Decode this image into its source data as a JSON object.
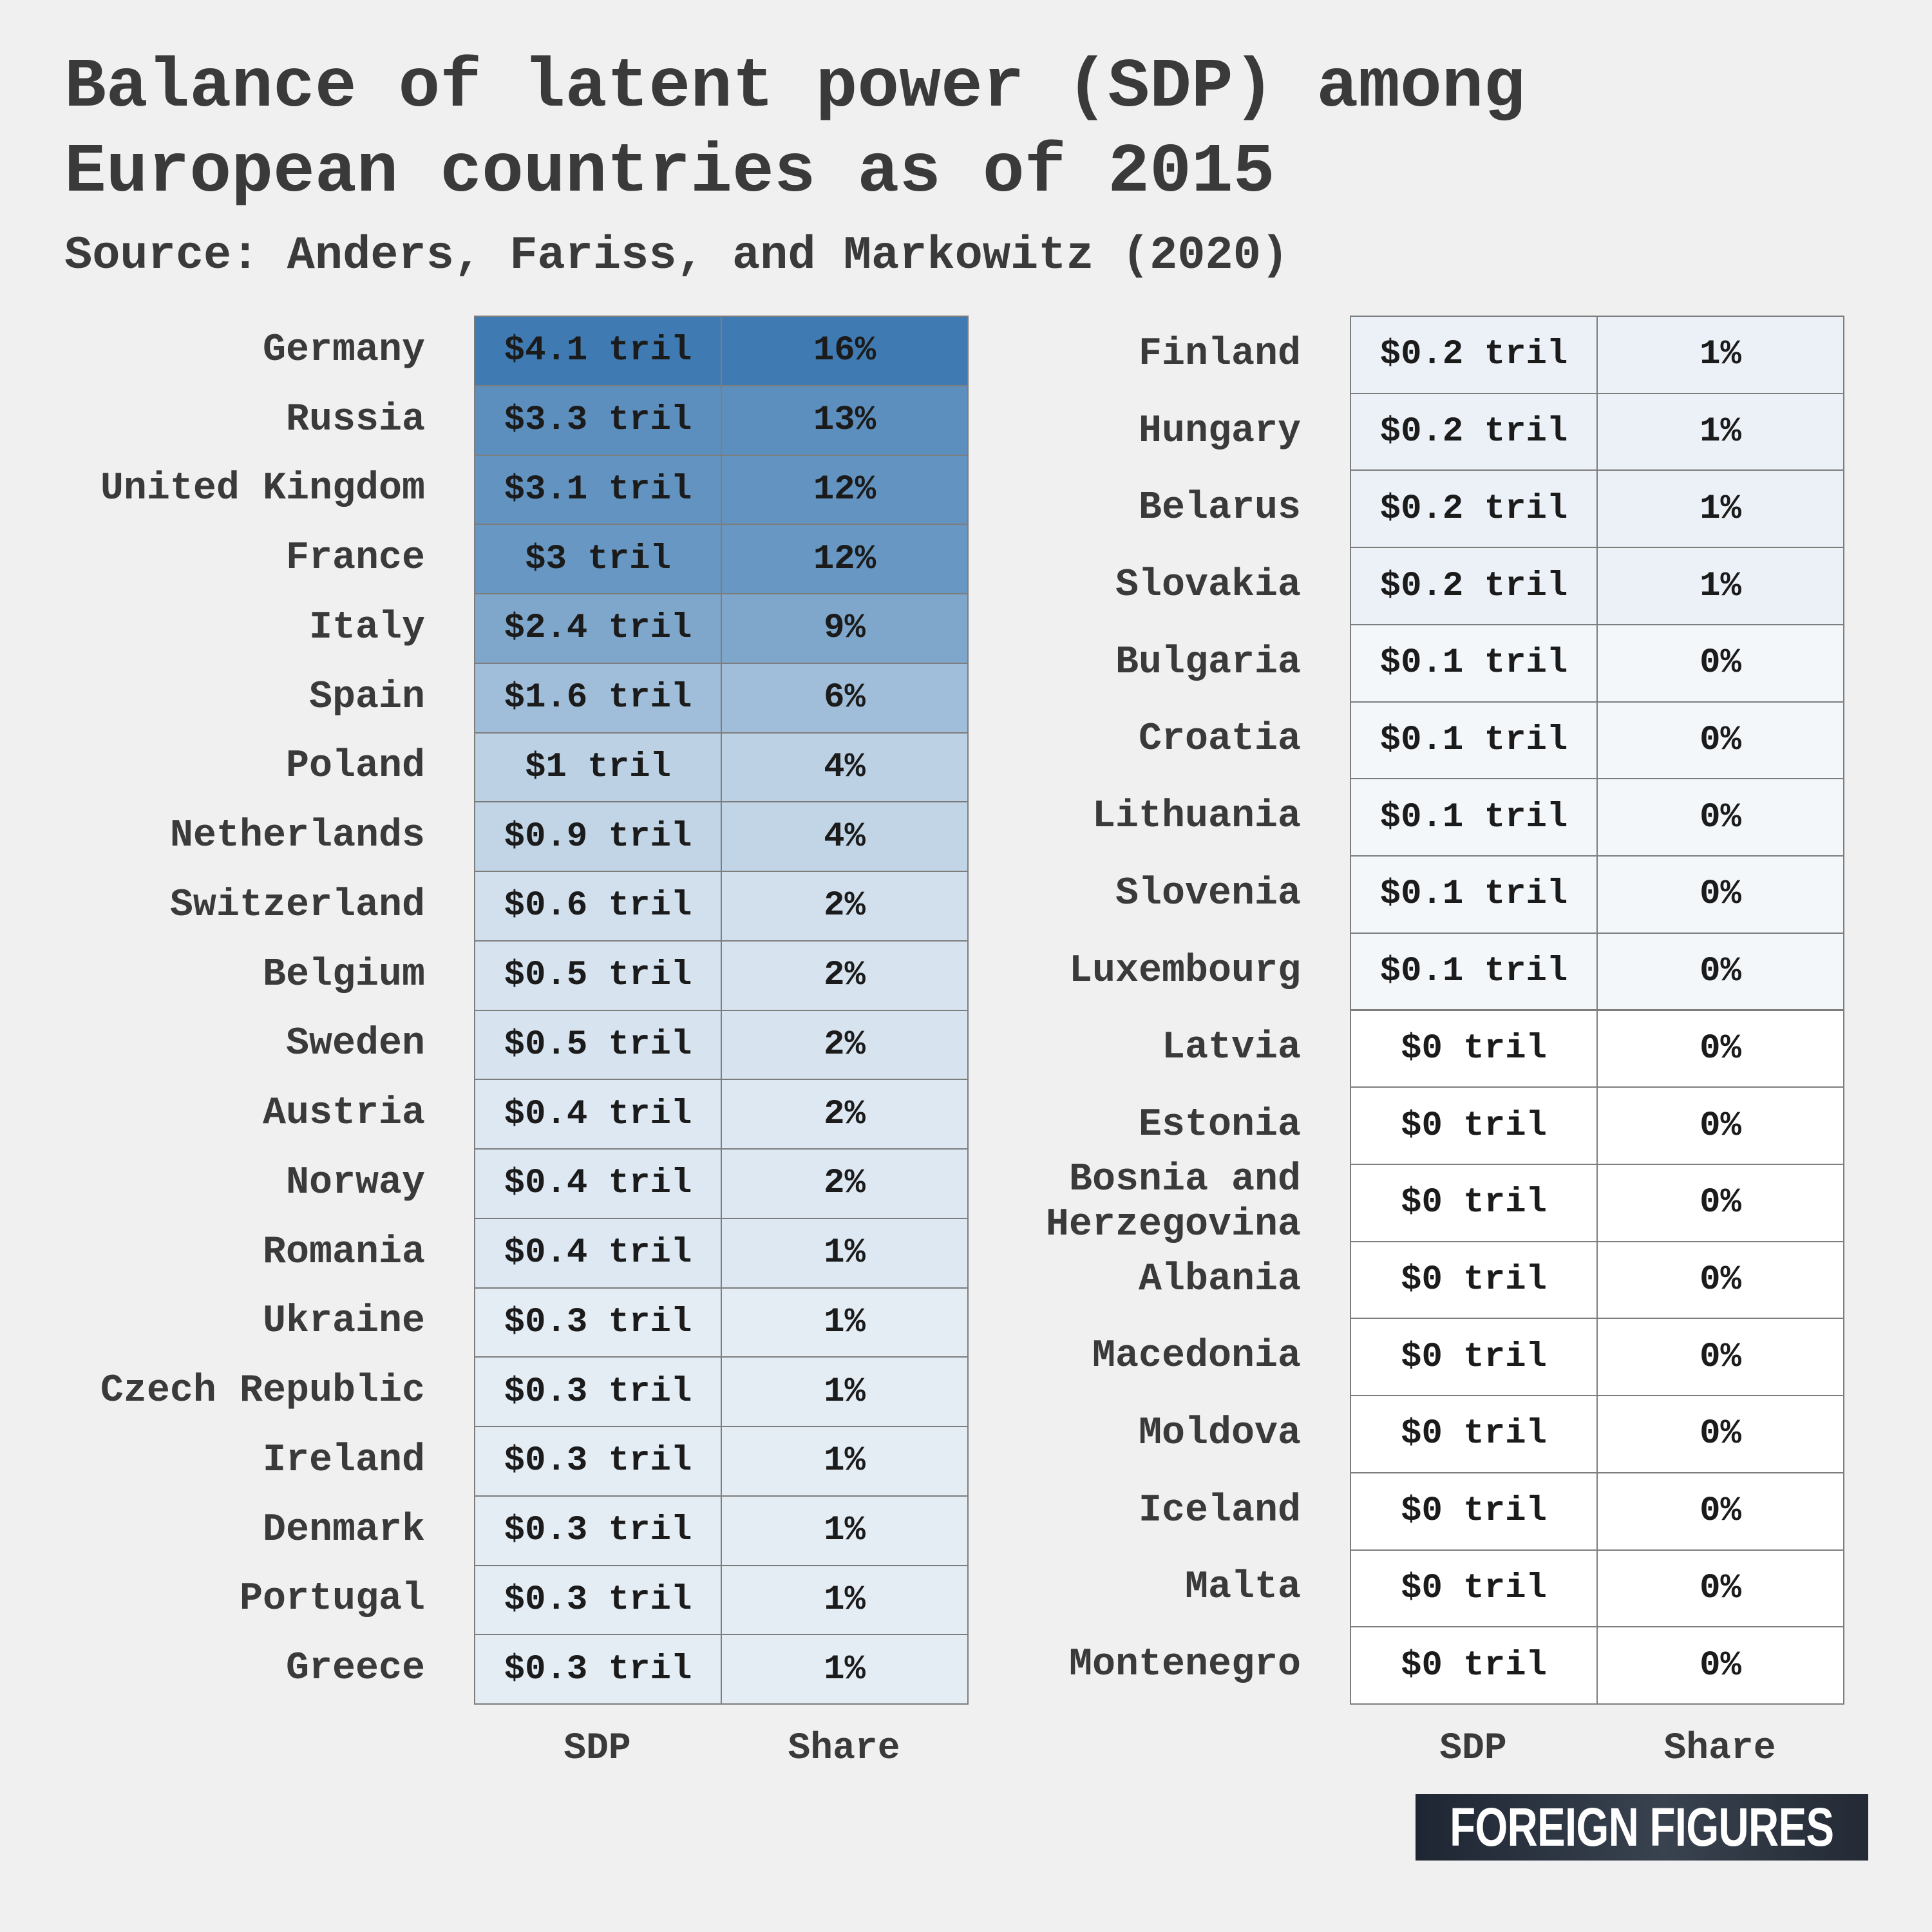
{
  "title": "Balance of latent power (SDP) among European countries as of 2015",
  "subtitle": "Source: Anders, Fariss, and Markowitz (2020)",
  "logo_text": "FOREIGN FIGURES",
  "colors": {
    "background": "#f0f0f0",
    "scale_max": "#3f7bb2",
    "scale_min": "#ffffff",
    "border": "#7d7d7d"
  },
  "chart_data": {
    "type": "table",
    "column_headers": [
      "SDP",
      "Share"
    ],
    "columns": [
      {
        "rows": [
          {
            "country": "Germany",
            "sdp": "$4.1 tril",
            "share": "16%",
            "sdp_value": 4.1
          },
          {
            "country": "Russia",
            "sdp": "$3.3 tril",
            "share": "13%",
            "sdp_value": 3.3
          },
          {
            "country": "United Kingdom",
            "sdp": "$3.1 tril",
            "share": "12%",
            "sdp_value": 3.1
          },
          {
            "country": "France",
            "sdp": "$3 tril",
            "share": "12%",
            "sdp_value": 3.0
          },
          {
            "country": "Italy",
            "sdp": "$2.4 tril",
            "share": "9%",
            "sdp_value": 2.4
          },
          {
            "country": "Spain",
            "sdp": "$1.6 tril",
            "share": "6%",
            "sdp_value": 1.6
          },
          {
            "country": "Poland",
            "sdp": "$1 tril",
            "share": "4%",
            "sdp_value": 1.0
          },
          {
            "country": "Netherlands",
            "sdp": "$0.9 tril",
            "share": "4%",
            "sdp_value": 0.9
          },
          {
            "country": "Switzerland",
            "sdp": "$0.6 tril",
            "share": "2%",
            "sdp_value": 0.6
          },
          {
            "country": "Belgium",
            "sdp": "$0.5 tril",
            "share": "2%",
            "sdp_value": 0.5
          },
          {
            "country": "Sweden",
            "sdp": "$0.5 tril",
            "share": "2%",
            "sdp_value": 0.5
          },
          {
            "country": "Austria",
            "sdp": "$0.4 tril",
            "share": "2%",
            "sdp_value": 0.4
          },
          {
            "country": "Norway",
            "sdp": "$0.4 tril",
            "share": "2%",
            "sdp_value": 0.4
          },
          {
            "country": "Romania",
            "sdp": "$0.4 tril",
            "share": "1%",
            "sdp_value": 0.4
          },
          {
            "country": "Ukraine",
            "sdp": "$0.3 tril",
            "share": "1%",
            "sdp_value": 0.3
          },
          {
            "country": "Czech Republic",
            "sdp": "$0.3 tril",
            "share": "1%",
            "sdp_value": 0.3
          },
          {
            "country": "Ireland",
            "sdp": "$0.3 tril",
            "share": "1%",
            "sdp_value": 0.3
          },
          {
            "country": "Denmark",
            "sdp": "$0.3 tril",
            "share": "1%",
            "sdp_value": 0.3
          },
          {
            "country": "Portugal",
            "sdp": "$0.3 tril",
            "share": "1%",
            "sdp_value": 0.3
          },
          {
            "country": "Greece",
            "sdp": "$0.3 tril",
            "share": "1%",
            "sdp_value": 0.3
          }
        ]
      },
      {
        "rows": [
          {
            "country": "Finland",
            "sdp": "$0.2 tril",
            "share": "1%",
            "sdp_value": 0.2
          },
          {
            "country": "Hungary",
            "sdp": "$0.2 tril",
            "share": "1%",
            "sdp_value": 0.2
          },
          {
            "country": "Belarus",
            "sdp": "$0.2 tril",
            "share": "1%",
            "sdp_value": 0.2
          },
          {
            "country": "Slovakia",
            "sdp": "$0.2 tril",
            "share": "1%",
            "sdp_value": 0.2
          },
          {
            "country": "Bulgaria",
            "sdp": "$0.1 tril",
            "share": "0%",
            "sdp_value": 0.1
          },
          {
            "country": "Croatia",
            "sdp": "$0.1 tril",
            "share": "0%",
            "sdp_value": 0.1
          },
          {
            "country": "Lithuania",
            "sdp": "$0.1 tril",
            "share": "0%",
            "sdp_value": 0.1
          },
          {
            "country": "Slovenia",
            "sdp": "$0.1 tril",
            "share": "0%",
            "sdp_value": 0.1
          },
          {
            "country": "Luxembourg",
            "sdp": "$0.1 tril",
            "share": "0%",
            "sdp_value": 0.1
          },
          {
            "country": "Latvia",
            "sdp": "$0 tril",
            "share": "0%",
            "sdp_value": 0.0
          },
          {
            "country": "Estonia",
            "sdp": "$0 tril",
            "share": "0%",
            "sdp_value": 0.0
          },
          {
            "country": "Bosnia and Herzegovina",
            "sdp": "$0 tril",
            "share": "0%",
            "sdp_value": 0.0
          },
          {
            "country": "Albania",
            "sdp": "$0 tril",
            "share": "0%",
            "sdp_value": 0.0
          },
          {
            "country": "Macedonia",
            "sdp": "$0 tril",
            "share": "0%",
            "sdp_value": 0.0
          },
          {
            "country": "Moldova",
            "sdp": "$0 tril",
            "share": "0%",
            "sdp_value": 0.0
          },
          {
            "country": "Iceland",
            "sdp": "$0 tril",
            "share": "0%",
            "sdp_value": 0.0
          },
          {
            "country": "Malta",
            "sdp": "$0 tril",
            "share": "0%",
            "sdp_value": 0.0
          },
          {
            "country": "Montenegro",
            "sdp": "$0 tril",
            "share": "0%",
            "sdp_value": 0.0
          }
        ]
      }
    ]
  }
}
